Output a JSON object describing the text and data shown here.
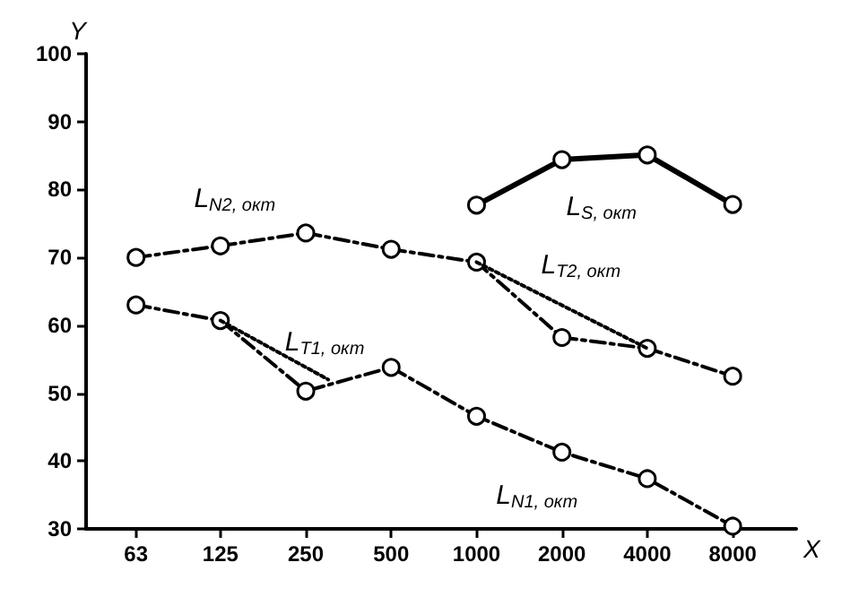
{
  "chart_data": {
    "type": "line",
    "xlabel": "X",
    "ylabel": "Y",
    "log": "x",
    "x": [
      63,
      125,
      250,
      500,
      1000,
      2000,
      4000,
      8000
    ],
    "xlim": [
      42,
      13400
    ],
    "xticks": [
      63,
      125,
      250,
      500,
      1000,
      2000,
      4000,
      8000
    ],
    "ylim": [
      30,
      100
    ],
    "yticks": [
      30,
      40,
      50,
      60,
      70,
      80,
      90,
      100
    ],
    "grid": false,
    "legend": false,
    "series": [
      {
        "name": "L$_{N2, окт}$",
        "color": "#000000",
        "line_style": "dashed",
        "marker": "circle",
        "values": [
          70,
          71.7,
          73.6,
          71.2,
          69.3,
          58.2,
          56.6,
          52.5
        ]
      },
      {
        "name": "L$_{N1, окт}$",
        "color": "#000000",
        "line_style": "dashed",
        "marker": "circle",
        "values": [
          63,
          60.7,
          50.3,
          53.8,
          46.6,
          41.3,
          37.4,
          30.4
        ]
      },
      {
        "name": "L$_{S, окт}$",
        "color": "#000000",
        "line_style": "solid",
        "marker": "circle",
        "values": [
          null,
          null,
          null,
          null,
          77.7,
          84.4,
          85.1,
          77.8
        ]
      },
      {
        "name": "L$_{T1, окт}$",
        "color": "#000000",
        "line_style": "dotted",
        "marker": "none",
        "x": [
          125,
          300
        ],
        "values": [
          60.7,
          52
        ]
      },
      {
        "name": "L$_{T2, окт}$",
        "color": "#000000",
        "line_style": "dotted",
        "marker": "none",
        "x": [
          1000,
          4000
        ],
        "values": [
          69.3,
          56.6
        ]
      }
    ]
  }
}
